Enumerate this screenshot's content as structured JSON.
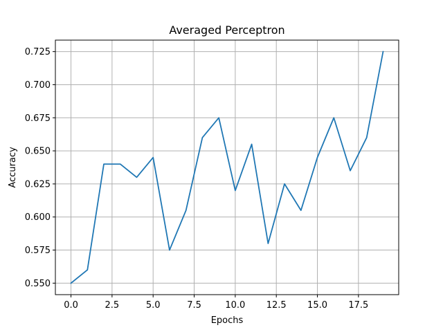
{
  "chart_data": {
    "type": "line",
    "title": "Averaged Perceptron",
    "xlabel": "Epochs",
    "ylabel": "Accuracy",
    "xlim": [
      -0.95,
      19.95
    ],
    "ylim": [
      0.5413,
      0.7337
    ],
    "xticks": [
      0.0,
      2.5,
      5.0,
      7.5,
      10.0,
      12.5,
      15.0,
      17.5
    ],
    "xtick_labels": [
      "0.0",
      "2.5",
      "5.0",
      "7.5",
      "10.0",
      "12.5",
      "15.0",
      "17.5"
    ],
    "yticks": [
      0.55,
      0.575,
      0.6,
      0.625,
      0.65,
      0.675,
      0.7,
      0.725
    ],
    "ytick_labels": [
      "0.550",
      "0.575",
      "0.600",
      "0.625",
      "0.650",
      "0.675",
      "0.700",
      "0.725"
    ],
    "grid": true,
    "color": "#1f77b4",
    "series": [
      {
        "x": [
          0,
          1,
          2,
          3,
          4,
          5,
          6,
          7,
          8,
          9,
          10,
          11,
          12,
          13,
          14,
          15,
          16,
          17,
          18,
          19
        ],
        "values": [
          0.55,
          0.56,
          0.64,
          0.64,
          0.63,
          0.645,
          0.575,
          0.605,
          0.66,
          0.675,
          0.62,
          0.655,
          0.58,
          0.625,
          0.605,
          0.645,
          0.675,
          0.635,
          0.66,
          0.725
        ]
      }
    ]
  }
}
